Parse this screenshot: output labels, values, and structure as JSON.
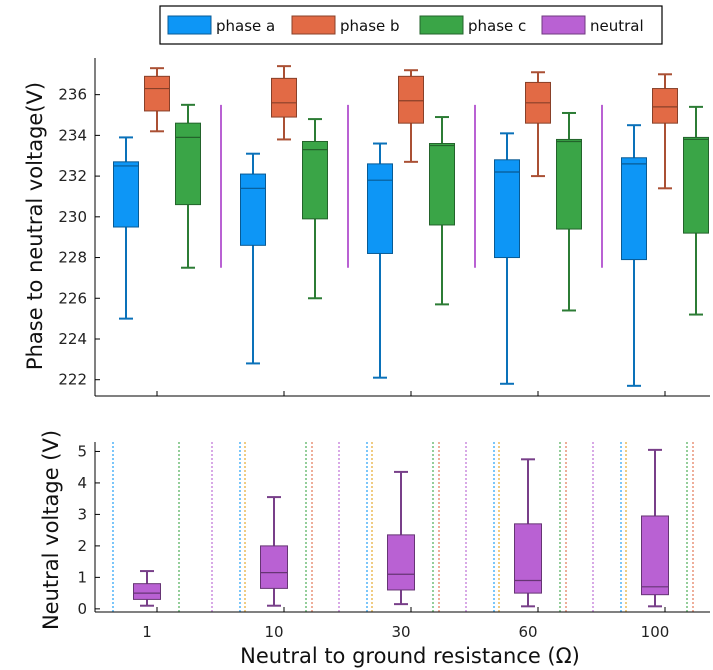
{
  "chart_data": [
    {
      "type": "box",
      "title": "",
      "xlabel": "",
      "ylabel": "Phase to neutral voltage(V)",
      "ylim": [
        221.2,
        237.8
      ],
      "yticks": [
        222,
        224,
        226,
        228,
        230,
        232,
        234,
        236
      ],
      "categories": [
        "1",
        "10",
        "30",
        "60",
        "100"
      ],
      "legend": {
        "placement": "top-center",
        "entries": [
          "phase a",
          "phase b",
          "phase c",
          "neutral"
        ]
      },
      "grid": false,
      "series": [
        {
          "name": "phase a",
          "color": "#0d96f6",
          "stats": [
            {
              "min": 225.0,
              "q1": 229.5,
              "median": 232.5,
              "q3": 232.7,
              "max": 233.9
            },
            {
              "min": 222.8,
              "q1": 228.6,
              "median": 231.4,
              "q3": 232.1,
              "max": 233.1
            },
            {
              "min": 222.1,
              "q1": 228.2,
              "median": 231.8,
              "q3": 232.6,
              "max": 233.6
            },
            {
              "min": 221.8,
              "q1": 228.0,
              "median": 232.2,
              "q3": 232.8,
              "max": 234.1
            },
            {
              "min": 221.7,
              "q1": 227.9,
              "median": 232.6,
              "q3": 232.9,
              "max": 234.5
            }
          ]
        },
        {
          "name": "phase b",
          "color": "#e26a45",
          "stats": [
            {
              "min": 234.2,
              "q1": 235.2,
              "median": 236.3,
              "q3": 236.9,
              "max": 237.3
            },
            {
              "min": 233.8,
              "q1": 234.9,
              "median": 235.6,
              "q3": 236.8,
              "max": 237.4
            },
            {
              "min": 232.7,
              "q1": 234.6,
              "median": 235.7,
              "q3": 236.9,
              "max": 237.2
            },
            {
              "min": 232.0,
              "q1": 234.6,
              "median": 235.6,
              "q3": 236.6,
              "max": 237.1
            },
            {
              "min": 231.4,
              "q1": 234.6,
              "median": 235.4,
              "q3": 236.3,
              "max": 237.0
            }
          ]
        },
        {
          "name": "phase c",
          "color": "#3aa547",
          "stats": [
            {
              "min": 227.5,
              "q1": 230.6,
              "median": 233.9,
              "q3": 234.6,
              "max": 235.5
            },
            {
              "min": 226.0,
              "q1": 229.9,
              "median": 233.3,
              "q3": 233.7,
              "max": 234.8
            },
            {
              "min": 225.7,
              "q1": 229.6,
              "median": 233.5,
              "q3": 233.6,
              "max": 234.9
            },
            {
              "min": 225.4,
              "q1": 229.4,
              "median": 233.7,
              "q3": 233.8,
              "max": 235.1
            },
            {
              "min": 225.2,
              "q1": 229.2,
              "median": 233.8,
              "q3": 233.9,
              "max": 235.4
            }
          ]
        },
        {
          "name": "neutral",
          "color": "#b961d3",
          "range": [
            227.5,
            235.5
          ]
        }
      ]
    },
    {
      "type": "box",
      "title": "",
      "xlabel": "Neutral to ground resistance (Ω)",
      "ylabel": "Neutral voltage (V)",
      "ylim": [
        -0.1,
        5.3
      ],
      "yticks": [
        0,
        1,
        2,
        3,
        4,
        5
      ],
      "categories": [
        "1",
        "10",
        "30",
        "60",
        "100"
      ],
      "grid": false,
      "series": [
        {
          "name": "neutral",
          "color": "#b961d3",
          "stats": [
            {
              "min": 0.1,
              "q1": 0.3,
              "median": 0.5,
              "q3": 0.8,
              "max": 1.2
            },
            {
              "min": 0.1,
              "q1": 0.65,
              "median": 1.15,
              "q3": 2.0,
              "max": 3.55
            },
            {
              "min": 0.15,
              "q1": 0.6,
              "median": 1.1,
              "q3": 2.35,
              "max": 4.35
            },
            {
              "min": 0.08,
              "q1": 0.5,
              "median": 0.9,
              "q3": 2.7,
              "max": 4.75
            },
            {
              "min": 0.08,
              "q1": 0.45,
              "median": 0.7,
              "q3": 2.95,
              "max": 5.05
            }
          ]
        }
      ]
    }
  ]
}
